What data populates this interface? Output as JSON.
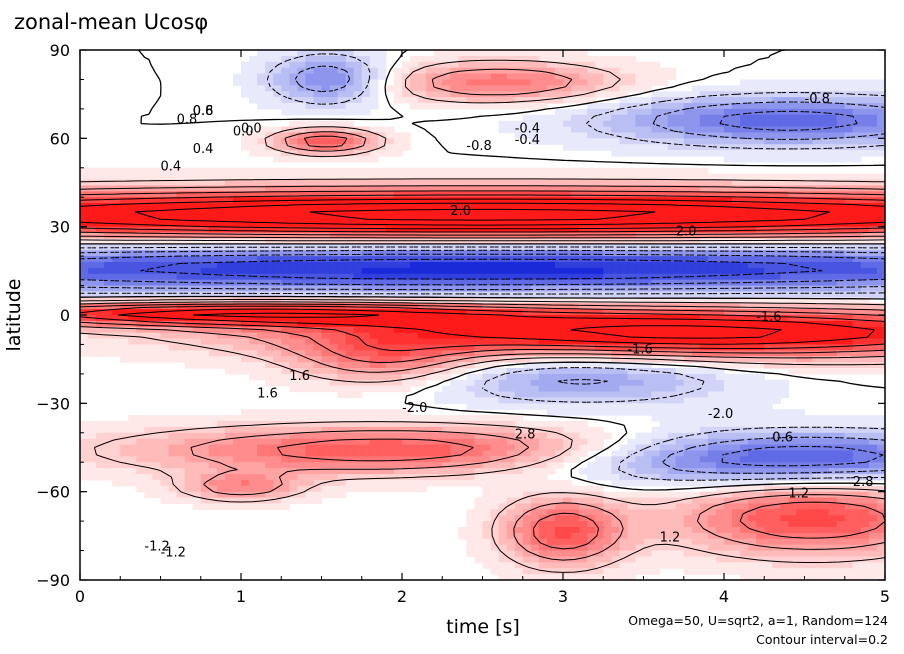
{
  "chart_data": {
    "type": "heatmap",
    "title": "zonal-mean Ucosφ",
    "xlabel": "time [s]",
    "ylabel": "latitude",
    "xlim": [
      0,
      5
    ],
    "ylim": [
      -90,
      90
    ],
    "xticks": [
      0,
      1,
      2,
      3,
      4,
      5
    ],
    "xtick_labels": [
      "0",
      "1",
      "2",
      "3",
      "4",
      "5"
    ],
    "yticks": [
      90,
      60,
      30,
      0,
      -30,
      -60,
      -90
    ],
    "ytick_labels": [
      "90",
      "60",
      "30",
      "0",
      "−30",
      "−60",
      "−90"
    ],
    "contour_interval": 0.2,
    "colormap": {
      "negative": "#1a2ad8",
      "zero": "#ffffff",
      "positive": "#ff1a1a"
    },
    "features": [
      {
        "sign": "positive",
        "t": [
          0,
          5
        ],
        "lat": [
          28,
          40
        ],
        "peak": 3.0
      },
      {
        "sign": "negative",
        "t": [
          0,
          5
        ],
        "lat": [
          10,
          22
        ],
        "peak": -2.0
      },
      {
        "sign": "positive",
        "t": [
          2.5,
          5
        ],
        "lat": [
          -12,
          0
        ],
        "peak": 2.6
      },
      {
        "sign": "positive",
        "t": [
          0,
          1.8
        ],
        "lat": [
          -2,
          3
        ],
        "peak": 2.2
      },
      {
        "sign": "positive",
        "t": [
          1.2,
          3.0
        ],
        "lat": [
          -52,
          -40
        ],
        "peak": 1.6
      },
      {
        "sign": "negative",
        "t": [
          3.5,
          5
        ],
        "lat": [
          -55,
          -42
        ],
        "peak": -1.8
      },
      {
        "sign": "positive",
        "t": [
          4.1,
          5
        ],
        "lat": [
          -78,
          -60
        ],
        "peak": 1.6
      },
      {
        "sign": "positive",
        "t": [
          2.8,
          3.2
        ],
        "lat": [
          -82,
          -65
        ],
        "peak": 1.5
      },
      {
        "sign": "negative",
        "t": [
          3.8,
          5
        ],
        "lat": [
          60,
          72
        ],
        "peak": -1.4
      },
      {
        "sign": "positive",
        "t": [
          1.35,
          1.7
        ],
        "lat": [
          56,
          62
        ],
        "peak": 1.5
      },
      {
        "sign": "positive",
        "t": [
          2.2,
          3.0
        ],
        "lat": [
          74,
          84
        ],
        "peak": 1.2
      },
      {
        "sign": "negative",
        "t": [
          1.35,
          1.75
        ],
        "lat": [
          74,
          86
        ],
        "peak": -1.2
      },
      {
        "sign": "positive",
        "t": [
          0.8,
          1.2
        ],
        "lat": [
          -62,
          -55
        ],
        "peak": 1.0
      },
      {
        "sign": "negative",
        "t": [
          2.6,
          3.6
        ],
        "lat": [
          -28,
          -15
        ],
        "peak": -0.9
      },
      {
        "sign": "positive",
        "t": [
          1.6,
          2.2
        ],
        "lat": [
          -22,
          -10
        ],
        "peak": 1.0
      }
    ],
    "contour_labels": [
      "0.8",
      "0.0",
      "-0.4",
      "0.4",
      "-0.8",
      "-1.2",
      "1.2",
      "2.8",
      "-1.6",
      "2.0",
      "1.6",
      "-2.0",
      "0.6"
    ]
  },
  "annotations": {
    "line1": "Omega=50, U=sqrt2, a=1, Random=124",
    "line2": "Contour interval=0.2"
  }
}
